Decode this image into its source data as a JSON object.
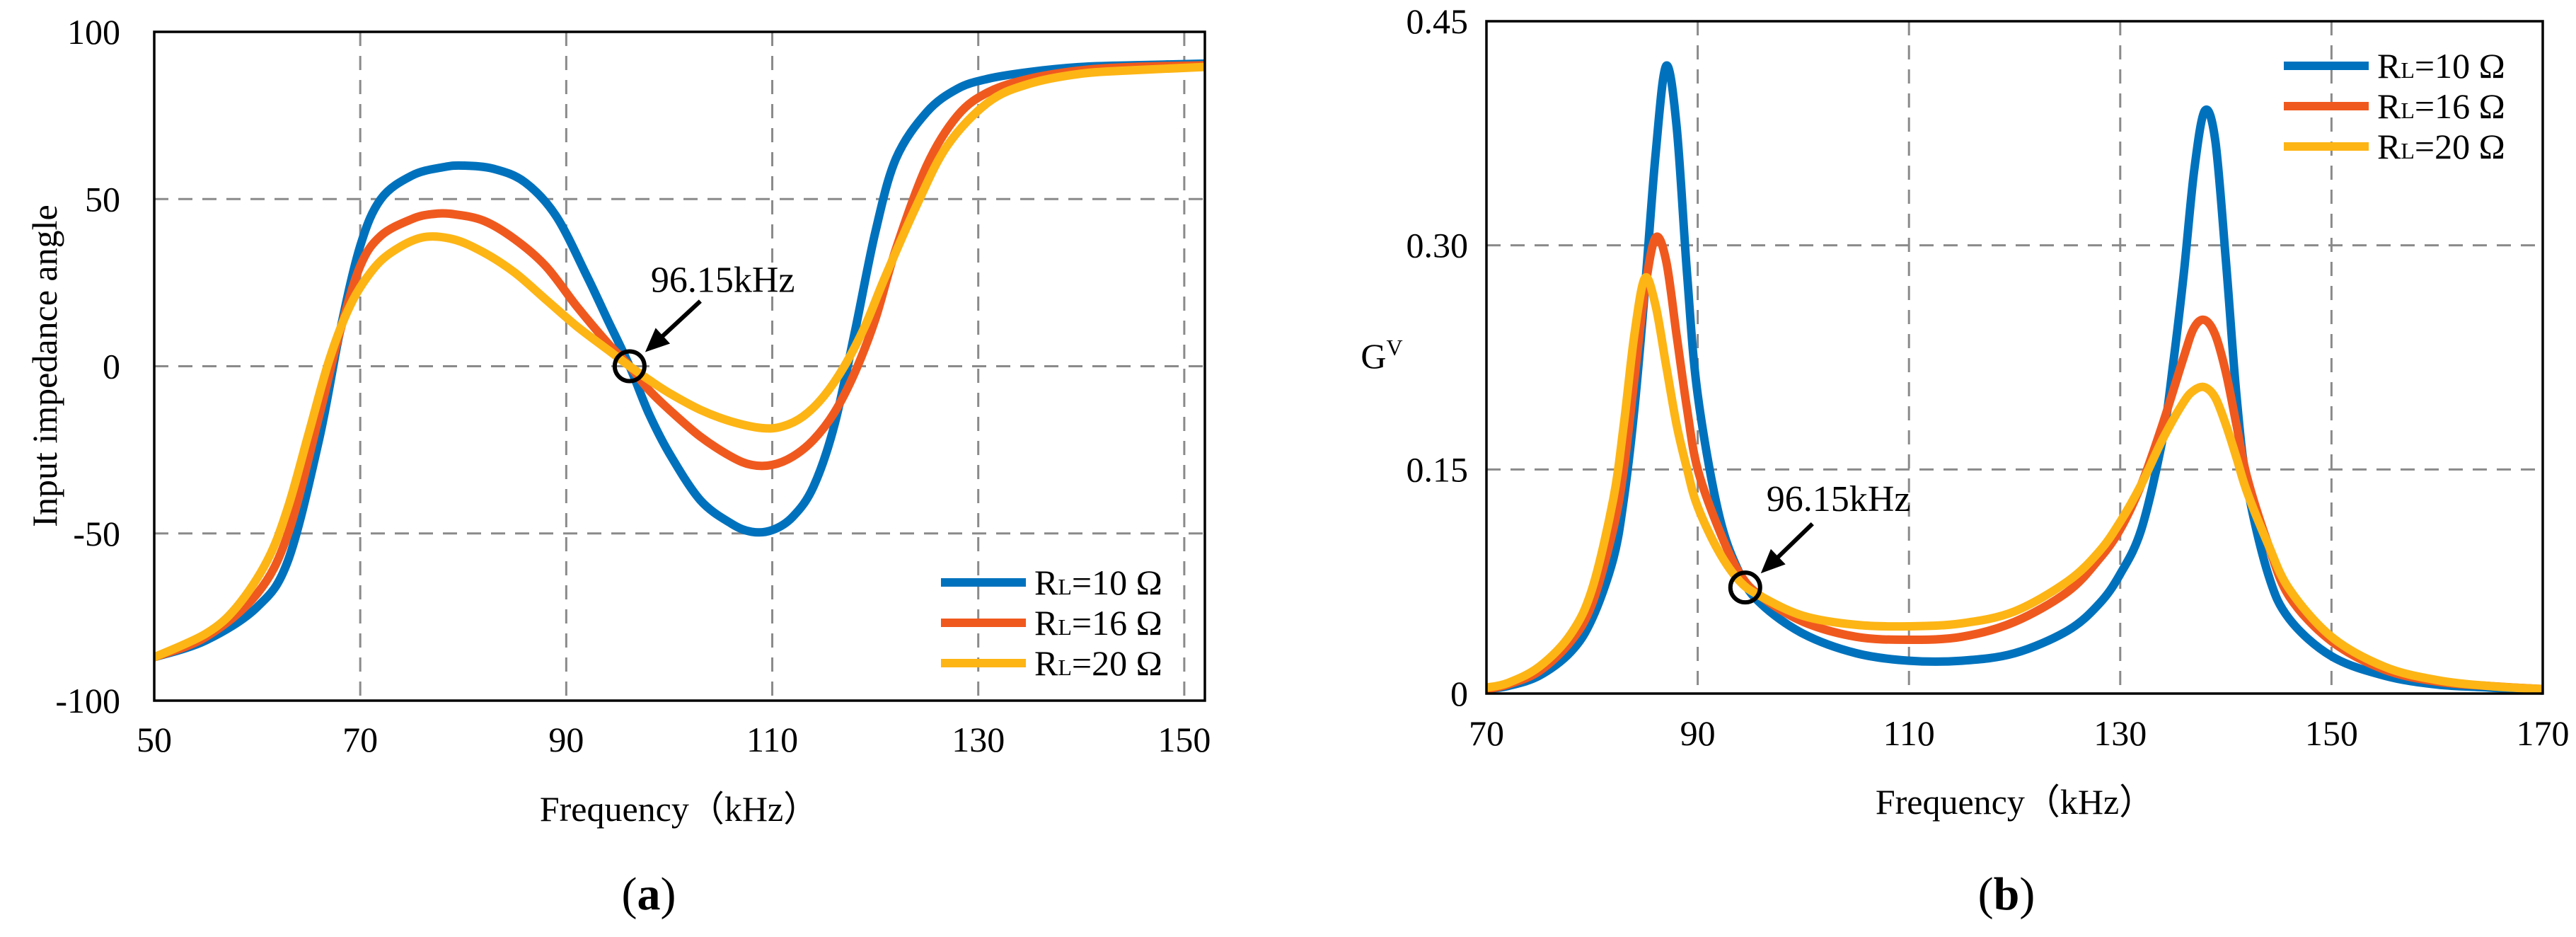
{
  "panels": {
    "a": {
      "label_open": "(",
      "label_letter": "a",
      "label_close": ")"
    },
    "b": {
      "label_open": "(",
      "label_letter": "b",
      "label_close": ")"
    }
  },
  "chart_data": [
    {
      "id": "a",
      "type": "line",
      "title": "",
      "xlabel": "Frequency（kHz）",
      "ylabel": "Input impedance angle",
      "xlim": [
        50,
        152
      ],
      "ylim": [
        -100,
        100
      ],
      "xticks": [
        50,
        70,
        90,
        110,
        130,
        150
      ],
      "yticks": [
        -100,
        -50,
        0,
        50,
        100
      ],
      "xtick_labels": [
        "50",
        "70",
        "90",
        "110",
        "130",
        "150"
      ],
      "ytick_labels": [
        "-100",
        "-50",
        "0",
        "50",
        "100"
      ],
      "grid": true,
      "legend_position": "bottom-right",
      "annotation": {
        "text": "96.15kHz",
        "x": 96.15,
        "y": 0
      },
      "series": [
        {
          "name": "RL=10 Ω",
          "label_main": "R",
          "label_sub": "L",
          "label_rest": "=10 Ω",
          "color": "#0072BD",
          "x": [
            50,
            55,
            60,
            63,
            66,
            68,
            70,
            72,
            75,
            78,
            80,
            83,
            86,
            89,
            92,
            94,
            96.15,
            98,
            100,
            103,
            106,
            108,
            110,
            112,
            114,
            116,
            118,
            120,
            122,
            125,
            128,
            131,
            135,
            140,
            145,
            152
          ],
          "y": [
            -87,
            -82,
            -72,
            -58,
            -22,
            10,
            36,
            50,
            57,
            59.5,
            60,
            59,
            55,
            45,
            27,
            14,
            0,
            -14,
            -26,
            -40,
            -47,
            -49.5,
            -49,
            -45,
            -36,
            -18,
            10,
            40,
            62,
            76,
            83,
            86,
            88,
            89.5,
            90,
            90.5
          ]
        },
        {
          "name": "RL=16 Ω",
          "label_main": "R",
          "label_sub": "L",
          "label_rest": "=16 Ω",
          "color": "#F0591E",
          "x": [
            50,
            55,
            60,
            63,
            66,
            68,
            70,
            72,
            75,
            77,
            79,
            82,
            85,
            88,
            91,
            94,
            96.15,
            98,
            100,
            103,
            106,
            108,
            110,
            112,
            114,
            116,
            118,
            120,
            122,
            125,
            128,
            131,
            135,
            140,
            145,
            152
          ],
          "y": [
            -87,
            -81,
            -68,
            -50,
            -15,
            10,
            30,
            39,
            44,
            45.5,
            45.5,
            43.5,
            38,
            30,
            18,
            7,
            0,
            -7,
            -13,
            -21,
            -27,
            -29.5,
            -29.5,
            -27,
            -22,
            -14,
            -2,
            14,
            35,
            60,
            75,
            82,
            86,
            88.5,
            89.5,
            90
          ]
        },
        {
          "name": "RL=20 Ω",
          "label_main": "R",
          "label_sub": "L",
          "label_rest": "=20 Ω",
          "color": "#FDB515",
          "x": [
            50,
            55,
            58,
            61,
            63,
            65,
            67,
            69,
            71,
            73,
            76,
            79,
            82,
            85,
            88,
            91,
            94,
            96.15,
            98,
            100,
            103,
            106,
            109,
            111,
            113,
            115,
            117,
            119,
            121,
            124,
            127,
            131,
            135,
            140,
            145,
            152
          ],
          "y": [
            -87,
            -80,
            -72,
            -58,
            -42,
            -20,
            2,
            18,
            28,
            34,
            38.5,
            38,
            34,
            28,
            20,
            12,
            5,
            0,
            -4,
            -8,
            -13,
            -16.5,
            -18.5,
            -18,
            -15,
            -9,
            0,
            12,
            27,
            48,
            66,
            79,
            84.5,
            87.5,
            88.5,
            89.5
          ]
        }
      ]
    },
    {
      "id": "b",
      "type": "line",
      "title": "",
      "xlabel": "Frequency（kHz）",
      "ylabel_main": "G",
      "ylabel_sub": "V",
      "ylabel": "GV",
      "xlim": [
        70,
        170
      ],
      "ylim": [
        0,
        0.45
      ],
      "xticks": [
        70,
        90,
        110,
        130,
        150,
        170
      ],
      "yticks": [
        0,
        0.15,
        0.3,
        0.45
      ],
      "xtick_labels": [
        "70",
        "90",
        "110",
        "130",
        "150",
        "170"
      ],
      "ytick_labels": [
        "0",
        "0.15",
        "0.30",
        "0.45"
      ],
      "grid": true,
      "legend_position": "top-right",
      "annotation": {
        "text": "96.15kHz",
        "x": 94.5,
        "y": 0.071
      },
      "series": [
        {
          "name": "RL=10 Ω",
          "label_main": "R",
          "label_sub": "L",
          "label_rest": "=10 Ω",
          "color": "#0072BD",
          "x": [
            70,
            72,
            75,
            78,
            80,
            82,
            83,
            84,
            85,
            86,
            87,
            88,
            89,
            90,
            92,
            94,
            96,
            100,
            105,
            110,
            115,
            120,
            125,
            128,
            130,
            132,
            134,
            135,
            136,
            137,
            138,
            139,
            140,
            141,
            142,
            144,
            146,
            150,
            155,
            160,
            165,
            170
          ],
          "y": [
            0.003,
            0.005,
            0.012,
            0.028,
            0.05,
            0.09,
            0.13,
            0.19,
            0.27,
            0.36,
            0.42,
            0.38,
            0.28,
            0.2,
            0.12,
            0.08,
            0.06,
            0.04,
            0.027,
            0.022,
            0.022,
            0.027,
            0.042,
            0.06,
            0.08,
            0.11,
            0.17,
            0.22,
            0.28,
            0.35,
            0.39,
            0.37,
            0.29,
            0.2,
            0.14,
            0.08,
            0.05,
            0.025,
            0.012,
            0.006,
            0.004,
            0.002
          ]
        },
        {
          "name": "RL=16 Ω",
          "label_main": "R",
          "label_sub": "L",
          "label_rest": "=16 Ω",
          "color": "#F0591E",
          "x": [
            70,
            72,
            75,
            78,
            80,
            82,
            83,
            84,
            85,
            86,
            87,
            88,
            89,
            90,
            92,
            94,
            96,
            100,
            105,
            110,
            115,
            120,
            125,
            128,
            130,
            132,
            134,
            136,
            137,
            138,
            139,
            140,
            141,
            142,
            144,
            146,
            150,
            155,
            160,
            165,
            170
          ],
          "y": [
            0.003,
            0.006,
            0.015,
            0.035,
            0.06,
            0.11,
            0.15,
            0.21,
            0.27,
            0.305,
            0.29,
            0.24,
            0.19,
            0.15,
            0.11,
            0.08,
            0.065,
            0.048,
            0.038,
            0.036,
            0.038,
            0.048,
            0.068,
            0.09,
            0.11,
            0.14,
            0.18,
            0.225,
            0.245,
            0.25,
            0.24,
            0.215,
            0.18,
            0.145,
            0.1,
            0.065,
            0.035,
            0.016,
            0.008,
            0.005,
            0.003
          ]
        },
        {
          "name": "RL=20 Ω",
          "label_main": "R",
          "label_sub": "L",
          "label_rest": "=20 Ω",
          "color": "#FDB515",
          "x": [
            70,
            72,
            75,
            78,
            80,
            82,
            83,
            84,
            85,
            86,
            87,
            88,
            89,
            90,
            92,
            94,
            96,
            100,
            105,
            110,
            115,
            120,
            125,
            128,
            130,
            132,
            134,
            136,
            137,
            138,
            139,
            140,
            141,
            142,
            144,
            146,
            150,
            155,
            160,
            165,
            170
          ],
          "y": [
            0.004,
            0.007,
            0.018,
            0.04,
            0.07,
            0.13,
            0.18,
            0.24,
            0.278,
            0.26,
            0.22,
            0.18,
            0.15,
            0.125,
            0.095,
            0.075,
            0.065,
            0.052,
            0.046,
            0.045,
            0.047,
            0.055,
            0.075,
            0.095,
            0.115,
            0.14,
            0.17,
            0.195,
            0.203,
            0.205,
            0.198,
            0.18,
            0.158,
            0.135,
            0.1,
            0.07,
            0.038,
            0.018,
            0.009,
            0.005,
            0.003
          ]
        }
      ]
    }
  ]
}
